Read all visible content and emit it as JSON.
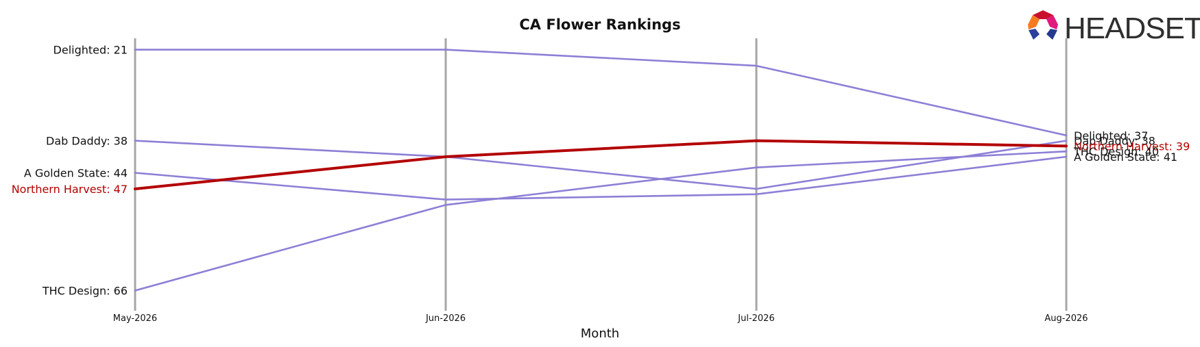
{
  "chart_data": {
    "type": "line",
    "title": "CA Flower Rankings",
    "xlabel": "Month",
    "ylabel": "",
    "x": [
      "May-2026",
      "Jun-2026",
      "Jul-2026",
      "Aug-2026"
    ],
    "ylim": [
      19,
      69
    ],
    "y_inverted": true,
    "grid": "vertical lines at each month",
    "highlight": "Northern Harvest",
    "series": [
      {
        "name": "Delighted",
        "values": [
          21,
          21,
          24,
          37
        ]
      },
      {
        "name": "Dab Daddy",
        "values": [
          38,
          41,
          47,
          38
        ]
      },
      {
        "name": "A Golden State",
        "values": [
          44,
          49,
          48,
          41
        ]
      },
      {
        "name": "Northern Harvest",
        "values": [
          47,
          41,
          38,
          39
        ]
      },
      {
        "name": "THC Design",
        "values": [
          66,
          50,
          43,
          40
        ]
      }
    ],
    "colors": {
      "series": "#8c7fd6",
      "highlight": "#b30000",
      "gridline": "#a6a6a6"
    }
  },
  "logo": {
    "text": "HEADSET"
  }
}
